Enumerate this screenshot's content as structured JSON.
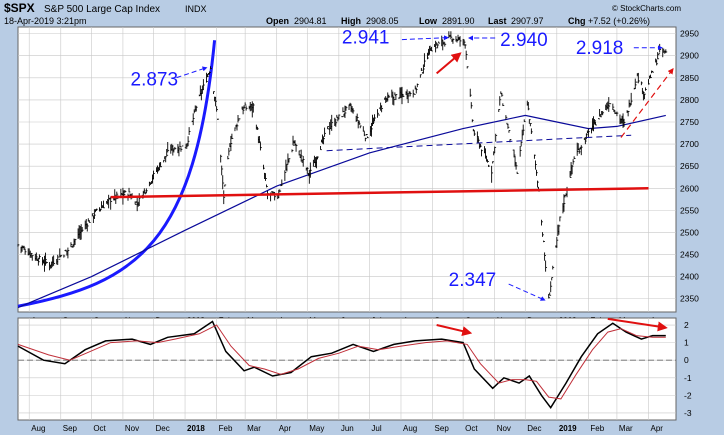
{
  "header": {
    "symbol": "$SPX",
    "name": "S&P 500 Large Cap Index",
    "exchange": "INDX",
    "date": "18-Apr-2019 3:21pm",
    "open_label": "Open",
    "open_value": "2904.81",
    "high_label": "High",
    "high_value": "2908.05",
    "low_label": "Low",
    "low_value": "2891.90",
    "last_label": "Last",
    "last_value": "2907.97",
    "chg_label": "Chg",
    "chg_value": "+7.52 (+0.26%)",
    "watermark": "© StockCharts.com"
  },
  "colors": {
    "background": "#b8cce4",
    "plot_background": "#ffffff",
    "price_bars": "#000000",
    "annotation_blue": "#1a1aff",
    "annotation_red": "#e01010",
    "moving_average": "#0a0a9a",
    "oscillator_signal": "#c0303a",
    "grid": "#c8c8c8"
  },
  "chart_data": [
    {
      "type": "ohlc",
      "title": "$SPX S&P 500 Large Cap Index INDX",
      "x_tick_labels": [
        "Aug",
        "Sep",
        "Oct",
        "Nov",
        "Dec",
        "2018",
        "Feb",
        "Mar",
        "Apr",
        "May",
        "Jun",
        "Jul",
        "Aug",
        "Sep",
        "Oct",
        "Nov",
        "Dec",
        "2019",
        "Feb",
        "Mar",
        "Apr"
      ],
      "y_ticks": [
        2350,
        2400,
        2450,
        2500,
        2550,
        2600,
        2650,
        2700,
        2750,
        2800,
        2850,
        2900,
        2950
      ],
      "ylim": [
        2320,
        2965
      ],
      "xlim": [
        "2017-07-21",
        "2019-04-28"
      ],
      "grid": true,
      "price_close_series": [
        [
          "2017-07-21",
          2472
        ],
        [
          "2017-08-10",
          2440
        ],
        [
          "2017-08-21",
          2428
        ],
        [
          "2017-09-08",
          2460
        ],
        [
          "2017-09-20",
          2500
        ],
        [
          "2017-10-05",
          2545
        ],
        [
          "2017-10-20",
          2575
        ],
        [
          "2017-11-06",
          2590
        ],
        [
          "2017-11-15",
          2565
        ],
        [
          "2017-12-04",
          2640
        ],
        [
          "2017-12-18",
          2690
        ],
        [
          "2018-01-02",
          2695
        ],
        [
          "2018-01-12",
          2785
        ],
        [
          "2018-01-26",
          2873
        ],
        [
          "2018-02-02",
          2760
        ],
        [
          "2018-02-08",
          2581
        ],
        [
          "2018-02-14",
          2700
        ],
        [
          "2018-02-26",
          2780
        ],
        [
          "2018-03-09",
          2786
        ],
        [
          "2018-03-23",
          2588
        ],
        [
          "2018-04-02",
          2582
        ],
        [
          "2018-04-18",
          2705
        ],
        [
          "2018-05-03",
          2630
        ],
        [
          "2018-05-21",
          2735
        ],
        [
          "2018-06-12",
          2785
        ],
        [
          "2018-06-28",
          2715
        ],
        [
          "2018-07-16",
          2800
        ],
        [
          "2018-07-30",
          2810
        ],
        [
          "2018-08-15",
          2820
        ],
        [
          "2018-08-29",
          2915
        ],
        [
          "2018-09-20",
          2941
        ],
        [
          "2018-10-03",
          2930
        ],
        [
          "2018-10-11",
          2730
        ],
        [
          "2018-10-29",
          2640
        ],
        [
          "2018-11-07",
          2815
        ],
        [
          "2018-11-23",
          2635
        ],
        [
          "2018-12-03",
          2795
        ],
        [
          "2018-12-14",
          2600
        ],
        [
          "2018-12-24",
          2347
        ],
        [
          "2019-01-04",
          2530
        ],
        [
          "2019-01-18",
          2670
        ],
        [
          "2019-02-05",
          2740
        ],
        [
          "2019-02-22",
          2795
        ],
        [
          "2019-03-08",
          2745
        ],
        [
          "2019-03-21",
          2855
        ],
        [
          "2019-03-28",
          2815
        ],
        [
          "2019-04-12",
          2907
        ],
        [
          "2019-04-18",
          2908
        ]
      ],
      "moving_average_200": [
        [
          "2017-07-21",
          2330
        ],
        [
          "2017-10-01",
          2400
        ],
        [
          "2018-01-01",
          2505
        ],
        [
          "2018-04-01",
          2605
        ],
        [
          "2018-07-01",
          2680
        ],
        [
          "2018-10-01",
          2735
        ],
        [
          "2018-12-01",
          2765
        ],
        [
          "2019-01-01",
          2750
        ],
        [
          "2019-02-01",
          2735
        ],
        [
          "2019-03-01",
          2740
        ],
        [
          "2019-04-18",
          2765
        ]
      ],
      "lines": [
        {
          "kind": "support",
          "color": "#e01010",
          "from": [
            "2017-10-20",
            2580
          ],
          "to": [
            "2019-04-01",
            2600
          ]
        },
        {
          "kind": "trend-dashed",
          "color": "#0a0a9a",
          "from": [
            "2018-05-20",
            2685
          ],
          "to": [
            "2019-03-15",
            2720
          ]
        }
      ],
      "annotations": [
        {
          "text": "2.873",
          "at": [
            "2018-01-26",
            2873
          ]
        },
        {
          "text": "2.941",
          "at": [
            "2018-09-20",
            2941
          ]
        },
        {
          "text": "2.940",
          "at": [
            "2018-10-03",
            2940
          ]
        },
        {
          "text": "2.918",
          "at": [
            "2019-04-18",
            2918
          ]
        },
        {
          "text": "2.347",
          "at": [
            "2018-12-24",
            2347
          ]
        }
      ]
    },
    {
      "type": "line",
      "title": "",
      "x_tick_labels": [
        "Aug",
        "Sep",
        "Oct",
        "Nov",
        "Dec",
        "2018",
        "Feb",
        "Mar",
        "Apr",
        "May",
        "Jun",
        "Jul",
        "Aug",
        "Sep",
        "Oct",
        "Nov",
        "Dec",
        "2019",
        "Feb",
        "Mar",
        "Apr"
      ],
      "y_ticks": [
        -3,
        -2,
        -1,
        0,
        1,
        2
      ],
      "ylim": [
        -3.4,
        2.4
      ],
      "grid": true,
      "series": [
        {
          "values": [
            [
              "2017-07-21",
              0.8
            ],
            [
              "2017-08-15",
              0.0
            ],
            [
              "2017-09-05",
              -0.2
            ],
            [
              "2017-09-25",
              0.6
            ],
            [
              "2017-10-15",
              1.1
            ],
            [
              "2017-11-10",
              1.2
            ],
            [
              "2017-11-28",
              0.9
            ],
            [
              "2017-12-15",
              1.3
            ],
            [
              "2018-01-10",
              1.5
            ],
            [
              "2018-01-28",
              2.2
            ],
            [
              "2018-02-10",
              0.5
            ],
            [
              "2018-02-28",
              -0.6
            ],
            [
              "2018-03-10",
              -0.4
            ],
            [
              "2018-03-28",
              -0.9
            ],
            [
              "2018-04-15",
              -0.7
            ],
            [
              "2018-05-05",
              0.2
            ],
            [
              "2018-05-25",
              0.4
            ],
            [
              "2018-06-15",
              0.9
            ],
            [
              "2018-07-05",
              0.5
            ],
            [
              "2018-07-25",
              0.9
            ],
            [
              "2018-08-15",
              1.1
            ],
            [
              "2018-09-10",
              1.2
            ],
            [
              "2018-10-01",
              1.0
            ],
            [
              "2018-10-12",
              -0.5
            ],
            [
              "2018-10-30",
              -1.6
            ],
            [
              "2018-11-10",
              -1.0
            ],
            [
              "2018-11-25",
              -1.3
            ],
            [
              "2018-12-05",
              -0.9
            ],
            [
              "2018-12-17",
              -2.0
            ],
            [
              "2018-12-26",
              -2.7
            ],
            [
              "2019-01-10",
              -1.3
            ],
            [
              "2019-01-25",
              0.2
            ],
            [
              "2019-02-10",
              1.5
            ],
            [
              "2019-02-25",
              2.1
            ],
            [
              "2019-03-10",
              1.6
            ],
            [
              "2019-03-25",
              1.2
            ],
            [
              "2019-04-05",
              1.4
            ],
            [
              "2019-04-18",
              1.4
            ]
          ]
        },
        {
          "values": [
            [
              "2017-07-21",
              0.9
            ],
            [
              "2017-08-20",
              0.3
            ],
            [
              "2017-09-10",
              0.0
            ],
            [
              "2017-09-30",
              0.5
            ],
            [
              "2017-10-20",
              1.0
            ],
            [
              "2017-11-15",
              1.1
            ],
            [
              "2017-12-05",
              1.0
            ],
            [
              "2017-12-22",
              1.2
            ],
            [
              "2018-01-15",
              1.5
            ],
            [
              "2018-02-01",
              2.0
            ],
            [
              "2018-02-15",
              0.8
            ],
            [
              "2018-03-05",
              -0.3
            ],
            [
              "2018-03-20",
              -0.5
            ],
            [
              "2018-04-05",
              -0.8
            ],
            [
              "2018-04-22",
              -0.5
            ],
            [
              "2018-05-12",
              0.1
            ],
            [
              "2018-06-01",
              0.4
            ],
            [
              "2018-06-20",
              0.8
            ],
            [
              "2018-07-10",
              0.6
            ],
            [
              "2018-08-01",
              0.8
            ],
            [
              "2018-08-25",
              1.0
            ],
            [
              "2018-09-15",
              1.1
            ],
            [
              "2018-10-05",
              0.9
            ],
            [
              "2018-10-18",
              -0.2
            ],
            [
              "2018-11-05",
              -1.3
            ],
            [
              "2018-11-18",
              -1.1
            ],
            [
              "2018-12-01",
              -1.1
            ],
            [
              "2018-12-12",
              -1.2
            ],
            [
              "2018-12-24",
              -2.1
            ],
            [
              "2019-01-05",
              -2.2
            ],
            [
              "2019-01-20",
              -0.8
            ],
            [
              "2019-02-05",
              0.6
            ],
            [
              "2019-02-20",
              1.6
            ],
            [
              "2019-03-05",
              1.8
            ],
            [
              "2019-03-20",
              1.4
            ],
            [
              "2019-04-05",
              1.3
            ],
            [
              "2019-04-18",
              1.3
            ]
          ]
        }
      ],
      "lines": [
        {
          "kind": "zero-dashed",
          "color": "#666666",
          "y": 0
        }
      ]
    }
  ]
}
